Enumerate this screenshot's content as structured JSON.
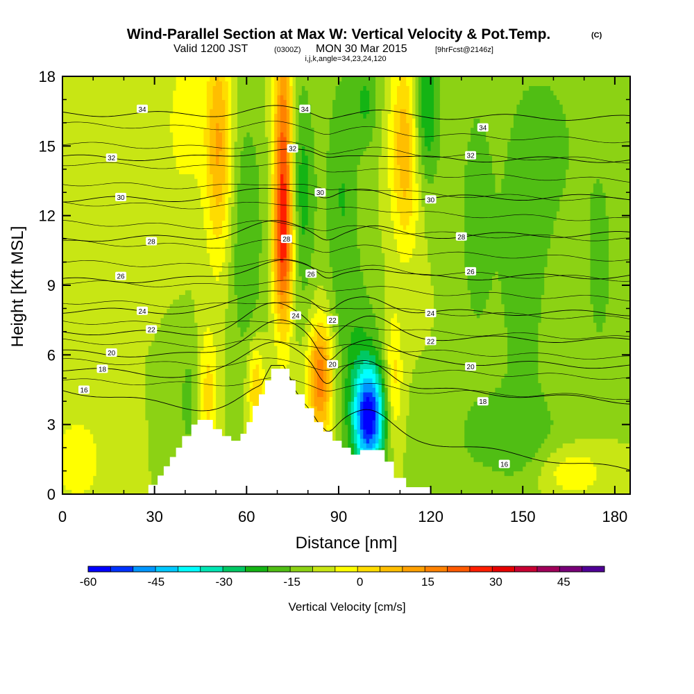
{
  "header": {
    "title": "Wind-Parallel Section at Max W: Vertical Velocity & Pot.Temp.",
    "copyright": "(C)",
    "valid_prefix": "Valid 1200 JST",
    "valid_utc": "(0300Z)",
    "valid_date": "MON 30 Mar 2015",
    "forecast": "[9hrFcst@2146z]",
    "indices": "i,j,k,angle=34,23,24,120"
  },
  "chart_data": {
    "type": "heatmap",
    "title": "Wind-Parallel Section at Max W: Vertical Velocity & Pot.Temp.",
    "xlabel": "Distance [nm]",
    "ylabel": "Height [Kft MSL]",
    "xlim": [
      0,
      185
    ],
    "ylim": [
      0,
      18
    ],
    "x_ticks": [
      0,
      30,
      60,
      90,
      120,
      150,
      180
    ],
    "y_ticks": [
      0,
      3,
      6,
      9,
      12,
      15,
      18
    ],
    "fill_variable": "Vertical Velocity",
    "fill_units": "cm/s",
    "colorbar": {
      "label": "Vertical Velocity [cm/s]",
      "tick_values": [
        -60,
        -45,
        -30,
        -15,
        0,
        15,
        30,
        45
      ],
      "range": [
        -60,
        54
      ],
      "step": 6,
      "colors": [
        "#0000ff",
        "#0032ff",
        "#0096ff",
        "#00c8ff",
        "#00ffff",
        "#00e6b4",
        "#00c864",
        "#14b414",
        "#50be14",
        "#8cd214",
        "#c8e614",
        "#ffff00",
        "#ffdc00",
        "#ffbe00",
        "#ffa000",
        "#ff8200",
        "#ff5a00",
        "#ff1e00",
        "#e60000",
        "#c80032",
        "#a0005a",
        "#780078",
        "#500096"
      ]
    },
    "terrain_profile": [
      {
        "x": 26,
        "y": 0
      },
      {
        "x": 28,
        "y": 0.4
      },
      {
        "x": 31,
        "y": 0.8
      },
      {
        "x": 33,
        "y": 1.2
      },
      {
        "x": 35,
        "y": 1.6
      },
      {
        "x": 37,
        "y": 2.0
      },
      {
        "x": 39,
        "y": 2.5
      },
      {
        "x": 42,
        "y": 3.0
      },
      {
        "x": 44,
        "y": 3.2
      },
      {
        "x": 47,
        "y": 3.2
      },
      {
        "x": 49,
        "y": 2.8
      },
      {
        "x": 52,
        "y": 2.5
      },
      {
        "x": 55,
        "y": 2.3
      },
      {
        "x": 58,
        "y": 2.6
      },
      {
        "x": 60,
        "y": 3.1
      },
      {
        "x": 62,
        "y": 3.8
      },
      {
        "x": 64,
        "y": 4.3
      },
      {
        "x": 66,
        "y": 4.9
      },
      {
        "x": 68,
        "y": 5.4
      },
      {
        "x": 72,
        "y": 5.4
      },
      {
        "x": 74,
        "y": 4.9
      },
      {
        "x": 76,
        "y": 4.3
      },
      {
        "x": 79,
        "y": 3.7
      },
      {
        "x": 82,
        "y": 3.1
      },
      {
        "x": 85,
        "y": 2.7
      },
      {
        "x": 88,
        "y": 2.3
      },
      {
        "x": 91,
        "y": 2.0
      },
      {
        "x": 94,
        "y": 1.7
      },
      {
        "x": 97,
        "y": 1.9
      },
      {
        "x": 102,
        "y": 1.9
      },
      {
        "x": 105,
        "y": 1.4
      },
      {
        "x": 108,
        "y": 0.7
      },
      {
        "x": 112,
        "y": 0.3
      },
      {
        "x": 118,
        "y": 0.3
      },
      {
        "x": 120,
        "y": 0
      }
    ],
    "velocity_features": [
      {
        "x": 72,
        "y": 14,
        "sx": 2.2,
        "sy": 4.5,
        "w": 40
      },
      {
        "x": 72,
        "y": 10.5,
        "sx": 2.5,
        "sy": 2.0,
        "w": 18
      },
      {
        "x": 51,
        "y": 15,
        "sx": 3,
        "sy": 3.5,
        "w": 24
      },
      {
        "x": 84,
        "y": 5,
        "sx": 2.8,
        "sy": 1.8,
        "w": 35
      },
      {
        "x": 100,
        "y": 3.3,
        "sx": 3.5,
        "sy": 1.5,
        "w": -52
      },
      {
        "x": 97,
        "y": 5,
        "sx": 5,
        "sy": 3,
        "w": -12
      },
      {
        "x": 112,
        "y": 15,
        "sx": 3.5,
        "sy": 3,
        "w": 25
      },
      {
        "x": 118,
        "y": 16.5,
        "sx": 3.5,
        "sy": 2.5,
        "w": -20
      },
      {
        "x": 99,
        "y": 17,
        "sx": 3,
        "sy": 1.5,
        "w": -12
      },
      {
        "x": 78,
        "y": 13,
        "sx": 3,
        "sy": 3.5,
        "w": -15
      },
      {
        "x": 60,
        "y": 11,
        "sx": 4,
        "sy": 4,
        "w": -12
      },
      {
        "x": 91,
        "y": 13,
        "sx": 4,
        "sy": 4,
        "w": -12
      },
      {
        "x": 135,
        "y": 12,
        "sx": 4,
        "sy": 4,
        "w": -10
      },
      {
        "x": 150,
        "y": 10,
        "sx": 6,
        "sy": 5,
        "w": -10
      },
      {
        "x": 175,
        "y": 10,
        "sx": 3,
        "sy": 3,
        "w": -10
      },
      {
        "x": 145,
        "y": 2.5,
        "sx": 15,
        "sy": 1.5,
        "w": -9
      },
      {
        "x": 166,
        "y": 1,
        "sx": 8,
        "sy": 0.8,
        "w": 12
      },
      {
        "x": 47,
        "y": 4.2,
        "sx": 2.5,
        "sy": 2,
        "w": 20
      },
      {
        "x": 5,
        "y": 1.5,
        "sx": 6,
        "sy": 1.5,
        "w": 10
      },
      {
        "x": 40,
        "y": 16,
        "sx": 6,
        "sy": 3,
        "w": 8
      },
      {
        "x": 43,
        "y": 4,
        "sx": 4,
        "sy": 2,
        "w": -10
      },
      {
        "x": 63,
        "y": 4.5,
        "sx": 2,
        "sy": 1.5,
        "w": 20
      },
      {
        "x": 108,
        "y": 5,
        "sx": 2,
        "sy": 2,
        "w": 15
      },
      {
        "x": 160,
        "y": 15,
        "sx": 8,
        "sy": 3,
        "w": -7
      }
    ],
    "theta_levels": [
      {
        "value": 16,
        "far_left_y": 4.5,
        "far_right_y": 1.0,
        "peak": 1.5,
        "label": "16"
      },
      {
        "value": 18,
        "far_left_y": 5.4,
        "far_right_y": 4.0,
        "peak": 1.8,
        "label": "18"
      },
      {
        "value": 20,
        "far_left_y": 6.1,
        "far_right_y": 5.5,
        "peak": 1.6,
        "label": "20"
      },
      {
        "value": 22,
        "far_left_y": 7.0,
        "far_right_y": 6.6,
        "peak": 1.3,
        "label": "22"
      },
      {
        "value": 24,
        "far_left_y": 7.9,
        "far_right_y": 7.8,
        "peak": 1.0,
        "label": "24"
      },
      {
        "value": 26,
        "far_left_y": 9.2,
        "far_right_y": 9.4,
        "peak": 0.8,
        "label": "26"
      },
      {
        "value": 28,
        "far_left_y": 11.0,
        "far_right_y": 11.2,
        "peak": 0.6,
        "label": "28"
      },
      {
        "value": 30,
        "far_left_y": 12.7,
        "far_right_y": 12.8,
        "peak": 0.5,
        "label": "30"
      },
      {
        "value": 32,
        "far_left_y": 14.5,
        "far_right_y": 14.4,
        "peak": 0.4,
        "label": "32"
      },
      {
        "value": 34,
        "far_left_y": 16.4,
        "far_right_y": 16.2,
        "peak": 0.3,
        "label": "34"
      }
    ],
    "contour_labels": [
      {
        "text": "16",
        "x": 7,
        "y": 4.5
      },
      {
        "text": "18",
        "x": 13,
        "y": 5.4
      },
      {
        "text": "20",
        "x": 16,
        "y": 6.1
      },
      {
        "text": "22",
        "x": 29,
        "y": 7.1
      },
      {
        "text": "24",
        "x": 26,
        "y": 7.9
      },
      {
        "text": "26",
        "x": 19,
        "y": 9.4
      },
      {
        "text": "28",
        "x": 29,
        "y": 10.9
      },
      {
        "text": "30",
        "x": 19,
        "y": 12.8
      },
      {
        "text": "32",
        "x": 16,
        "y": 14.5
      },
      {
        "text": "34",
        "x": 26,
        "y": 16.6
      },
      {
        "text": "34",
        "x": 79,
        "y": 16.6
      },
      {
        "text": "32",
        "x": 75,
        "y": 14.9
      },
      {
        "text": "30",
        "x": 84,
        "y": 13.0
      },
      {
        "text": "28",
        "x": 73,
        "y": 11.0
      },
      {
        "text": "26",
        "x": 81,
        "y": 9.5
      },
      {
        "text": "24",
        "x": 76,
        "y": 7.7
      },
      {
        "text": "22",
        "x": 88,
        "y": 7.5
      },
      {
        "text": "20",
        "x": 88,
        "y": 5.6
      },
      {
        "text": "34",
        "x": 137,
        "y": 15.8
      },
      {
        "text": "32",
        "x": 133,
        "y": 14.6
      },
      {
        "text": "30",
        "x": 120,
        "y": 12.7
      },
      {
        "text": "28",
        "x": 130,
        "y": 11.1
      },
      {
        "text": "26",
        "x": 133,
        "y": 9.6
      },
      {
        "text": "24",
        "x": 120,
        "y": 7.8
      },
      {
        "text": "22",
        "x": 120,
        "y": 6.6
      },
      {
        "text": "20",
        "x": 133,
        "y": 5.5
      },
      {
        "text": "18",
        "x": 137,
        "y": 4.0
      },
      {
        "text": "16",
        "x": 144,
        "y": 1.3
      }
    ]
  }
}
